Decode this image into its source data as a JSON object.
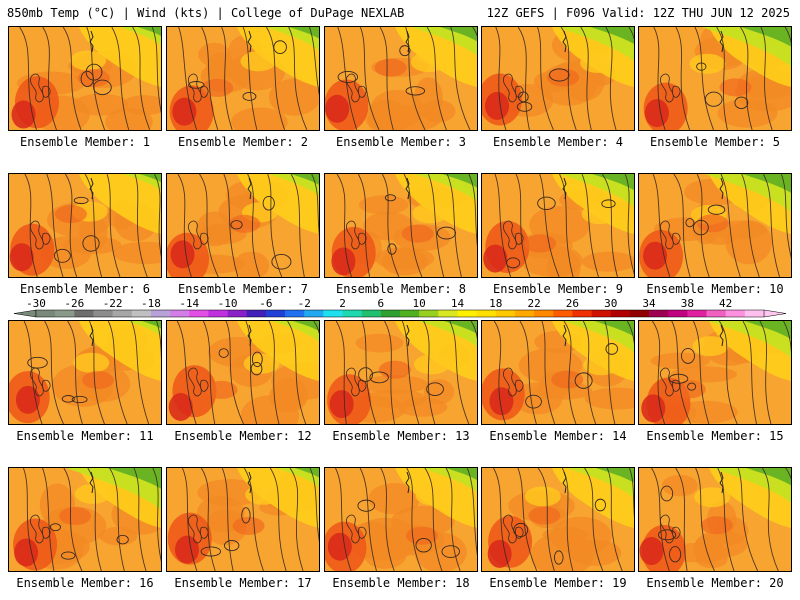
{
  "header": {
    "left": "850mb Temp (°C) | Wind (kts) | College of DuPage NEXLAB",
    "right": "12Z GEFS | F096 Valid: 12Z THU JUN 12 2025"
  },
  "label_prefix": "Ensemble Member: ",
  "members": [
    {
      "id": 1,
      "label": "Ensemble Member: 1"
    },
    {
      "id": 2,
      "label": "Ensemble Member: 2"
    },
    {
      "id": 3,
      "label": "Ensemble Member: 3"
    },
    {
      "id": 4,
      "label": "Ensemble Member: 4"
    },
    {
      "id": 5,
      "label": "Ensemble Member: 5"
    },
    {
      "id": 6,
      "label": "Ensemble Member: 6"
    },
    {
      "id": 7,
      "label": "Ensemble Member: 7"
    },
    {
      "id": 8,
      "label": "Ensemble Member: 8"
    },
    {
      "id": 9,
      "label": "Ensemble Member: 9"
    },
    {
      "id": 10,
      "label": "Ensemble Member: 10"
    },
    {
      "id": 11,
      "label": "Ensemble Member: 11"
    },
    {
      "id": 12,
      "label": "Ensemble Member: 12"
    },
    {
      "id": 13,
      "label": "Ensemble Member: 13"
    },
    {
      "id": 14,
      "label": "Ensemble Member: 14"
    },
    {
      "id": 15,
      "label": "Ensemble Member: 15"
    },
    {
      "id": 16,
      "label": "Ensemble Member: 16"
    },
    {
      "id": 17,
      "label": "Ensemble Member: 17"
    },
    {
      "id": 18,
      "label": "Ensemble Member: 18"
    },
    {
      "id": 19,
      "label": "Ensemble Member: 19"
    },
    {
      "id": 20,
      "label": "Ensemble Member: 20"
    }
  ],
  "colorbar": {
    "tick_labels": [
      "-30",
      "-26",
      "-22",
      "-18",
      "-14",
      "-10",
      "-6",
      "-2",
      "2",
      "6",
      "10",
      "14",
      "18",
      "22",
      "26",
      "30",
      "34",
      "38",
      "42"
    ],
    "colors": [
      "#7a8a7a",
      "#8a9a8a",
      "#6e6e6e",
      "#8c8c8c",
      "#a6a6a6",
      "#c0c0c0",
      "#b8a0d8",
      "#d27ee6",
      "#e24ee6",
      "#c030e0",
      "#8a20c8",
      "#4020b8",
      "#2040d8",
      "#2070f0",
      "#20a8f0",
      "#20e0f0",
      "#20d8b0",
      "#20c070",
      "#30a030",
      "#50b020",
      "#98d020",
      "#d8e820",
      "#fff000",
      "#ffe000",
      "#ffc800",
      "#ffa800",
      "#ff8800",
      "#ff5c00",
      "#f03000",
      "#d01000",
      "#b00000",
      "#900000",
      "#a00050",
      "#c00080",
      "#e020a0",
      "#f060c0",
      "#ff90e0",
      "#ffc0f0"
    ],
    "left_arrow_color": "#7a8a7a",
    "right_arrow_color": "#ffc8f0"
  }
}
